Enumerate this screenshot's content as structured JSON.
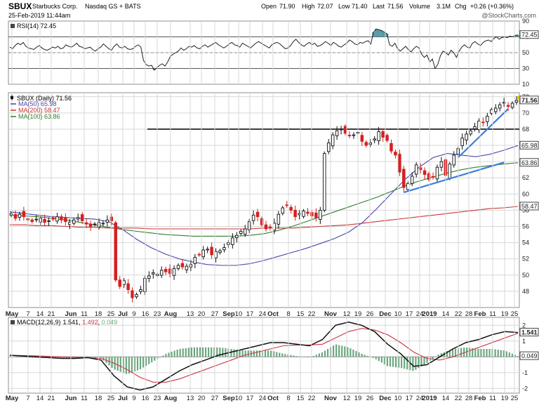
{
  "header": {
    "symbol": "SBUX",
    "company": "Starbucks Corp.",
    "exchange": "Nasdaq GS + BATS",
    "date": "25-Feb-2019 11:44am",
    "open_label": "Open",
    "open": "71.90",
    "high_label": "High",
    "high": "72.07",
    "low_label": "Low",
    "low": "71.40",
    "last_label": "Last",
    "last": "71.56",
    "volume_label": "Volume",
    "volume": "3.1M",
    "chg_label": "Chg",
    "chg": "+0.26 (+0.36%)",
    "watermark": "@StockCharts.com"
  },
  "colors": {
    "up": "#111111",
    "down": "#d42020",
    "ma50": "#4a45a8",
    "ma200": "#cc3333",
    "ma100": "#2f7d2f",
    "trend": "#3b7ddd",
    "rsi_fill": "#5b9aa8",
    "macd_hist": "#6aa77f",
    "macd_signal": "#cc3344"
  },
  "x_axis": {
    "labels": [
      "May",
      "7",
      "14",
      "21",
      "Jun",
      "11",
      "18",
      "25",
      "Jul",
      "9",
      "16",
      "23",
      "Aug",
      "13",
      "20",
      "27",
      "Sep",
      "10",
      "17",
      "24",
      "Oct",
      "8",
      "15",
      "22",
      "Nov",
      "12",
      "19",
      "26",
      "Dec",
      "10",
      "17",
      "24",
      "2019",
      "14",
      "22",
      "28",
      "Feb",
      "11",
      "19",
      "25"
    ]
  },
  "chart_data": [
    {
      "type": "line",
      "panel": "rsi",
      "title": "RSI(14) 72.45",
      "y_ticks": [
        "90",
        "70",
        "50",
        "30",
        "10"
      ],
      "ylim": [
        10,
        90
      ],
      "reference_lines": [
        70,
        50,
        30
      ],
      "last_label": "72.45",
      "series": [
        {
          "name": "RSI(14)",
          "values": [
            57,
            55,
            59,
            62,
            60,
            63,
            58,
            56,
            55,
            54,
            57,
            59,
            56,
            54,
            53,
            55,
            57,
            56,
            58,
            55,
            56,
            60,
            58,
            57,
            59,
            62,
            58,
            57,
            55,
            56,
            57,
            54,
            52,
            55,
            57,
            61,
            58,
            55,
            53,
            58,
            61,
            57,
            56,
            58,
            55,
            54,
            55,
            58,
            60,
            57,
            40,
            35,
            33,
            34,
            28,
            31,
            34,
            36,
            33,
            38,
            45,
            48,
            50,
            52,
            56,
            53,
            55,
            58,
            57,
            59,
            56,
            55,
            58,
            60,
            57,
            59,
            61,
            63,
            60,
            58,
            56,
            58,
            61,
            63,
            60,
            59,
            57,
            62,
            60,
            58,
            56,
            59,
            62,
            64,
            62,
            60,
            58,
            56,
            60,
            62,
            63,
            61,
            58,
            55,
            56,
            59,
            64,
            67,
            63,
            60,
            58,
            61,
            63,
            60,
            62,
            58,
            59,
            61,
            64,
            62,
            59,
            63,
            61,
            58,
            57,
            60,
            62,
            66,
            64,
            61,
            60,
            63,
            62,
            64,
            65,
            61,
            76,
            80,
            79,
            78,
            76,
            74,
            60,
            58,
            62,
            55,
            52,
            55,
            58,
            54,
            51,
            55,
            58,
            56,
            48,
            44,
            47,
            38,
            42,
            30,
            35,
            46,
            52,
            50,
            47,
            53,
            50,
            44,
            52,
            57,
            60,
            57,
            56,
            62,
            64,
            61,
            59,
            63,
            65,
            66,
            64,
            68,
            70,
            67,
            69,
            70,
            69,
            71,
            70,
            72,
            72.45
          ]
        }
      ]
    },
    {
      "type": "line",
      "panel": "price",
      "title": "SBUX (Daily) 71.56",
      "chart_style": "candlestick",
      "y_ticks": [
        "72",
        "70",
        "68",
        "66",
        "64",
        "62",
        "60",
        "58",
        "56",
        "54",
        "52",
        "50",
        "48"
      ],
      "ylim": [
        46,
        72.5
      ],
      "legend": [
        {
          "name": "SBUX (Daily) 71.56",
          "swatch": "candle"
        },
        {
          "name": "MA(50) 65.98",
          "color": "#4a45a8"
        },
        {
          "name": "MA(200) 58.47",
          "color": "#cc3333"
        },
        {
          "name": "MA(100) 63.86",
          "color": "#2f7d2f"
        }
      ],
      "value_tags": [
        {
          "label": "71.56",
          "value": 71.56,
          "bold": true
        },
        {
          "label": "65.98",
          "value": 65.98
        },
        {
          "label": "63.86",
          "value": 63.86
        },
        {
          "label": "58.47",
          "value": 58.47
        }
      ],
      "horizontal_line": 68.0,
      "trendlines": [
        {
          "from": [
            94,
            60.2
          ],
          "to": [
            118,
            63.9
          ]
        },
        {
          "from": [
            107,
            64.5
          ],
          "to": [
            119,
            70.5
          ]
        }
      ],
      "series": [
        {
          "name": "Close",
          "values": [
            57.6,
            57.0,
            57.5,
            57.2,
            56.8,
            56.6,
            56.9,
            57.0,
            56.5,
            56.7,
            56.9,
            57.2,
            56.8,
            56.6,
            56.5,
            56.8,
            57.1,
            56.7,
            56.3,
            56.0,
            56.3,
            56.5,
            56.4,
            56.8,
            56.7,
            49.4,
            48.6,
            49.3,
            48.2,
            47.2,
            47.6,
            48.2,
            49.6,
            49.9,
            50.3,
            50.1,
            50.6,
            50.4,
            50.2,
            50.8,
            51.2,
            51.0,
            51.1,
            51.3,
            52.2,
            52.5,
            53.1,
            53.2,
            52.5,
            52.9,
            53.0,
            53.4,
            54.0,
            54.6,
            54.9,
            55.4,
            55.7,
            56.6,
            57.4,
            57.2,
            56.2,
            55.7,
            55.9,
            56.4,
            57.5,
            58.3,
            58.6,
            58.0,
            57.2,
            57.6,
            57.9,
            57.6,
            57.3,
            57.1,
            58.0,
            65.0,
            66.3,
            67.3,
            67.8,
            68.0,
            67.5,
            67.2,
            67.3,
            67.6,
            66.5,
            66.0,
            66.3,
            66.8,
            67.7,
            67.0,
            66.6,
            65.3,
            64.8,
            62.7,
            60.8,
            61.3,
            62.2,
            63.6,
            63.0,
            62.4,
            61.8,
            62.1,
            63.3,
            64.0,
            62.3,
            63.7,
            64.8,
            65.6,
            66.9,
            67.4,
            67.8,
            68.3,
            69.0,
            68.8,
            69.6,
            70.4,
            70.6,
            71.0,
            71.3,
            70.8,
            71.2,
            71.56
          ]
        },
        {
          "name": "MA(50) 65.98",
          "values": [
            57.8,
            57.6,
            57.4,
            57.2,
            57.1,
            57.0,
            56.9,
            56.6,
            55.6,
            54.4,
            53.4,
            52.6,
            52.0,
            51.6,
            51.3,
            51.2,
            51.2,
            51.4,
            51.8,
            52.3,
            52.8,
            53.3,
            53.9,
            54.5,
            55.3,
            56.5,
            58.2,
            60.0,
            61.8,
            63.3,
            64.5,
            65.0,
            64.8,
            64.6,
            64.9,
            65.4,
            65.98
          ]
        },
        {
          "name": "MA(200) 58.47",
          "values": [
            56.2,
            56.2,
            56.1,
            56.1,
            56.0,
            55.9,
            55.9,
            55.8,
            55.8,
            55.8,
            55.7,
            55.7,
            55.7,
            55.7,
            55.7,
            55.7,
            55.7,
            55.7,
            55.8,
            55.8,
            55.8,
            55.9,
            56.0,
            56.1,
            56.2,
            56.4,
            56.6,
            56.8,
            57.0,
            57.2,
            57.4,
            57.6,
            57.8,
            58.0,
            58.2,
            58.3,
            58.47
          ]
        },
        {
          "name": "MA(100) 63.86",
          "values": [
            57.4,
            57.3,
            57.2,
            57.0,
            56.8,
            56.5,
            56.2,
            55.9,
            55.6,
            55.4,
            55.2,
            55.0,
            54.9,
            54.8,
            54.8,
            54.8,
            54.8,
            54.9,
            55.1,
            55.5,
            56.0,
            56.6,
            57.2,
            57.8,
            58.4,
            59.0,
            59.6,
            60.3,
            61.0,
            61.6,
            62.1,
            62.6,
            63.0,
            63.3,
            63.5,
            63.7,
            63.86
          ]
        }
      ]
    },
    {
      "type": "line",
      "panel": "macd",
      "title": "MACD(12,26,9) 1.541, 1.492, 0.049",
      "legend": [
        {
          "name": "MACD(12,26,9)",
          "color": "#111111"
        },
        {
          "name": "1.541",
          "color": "#111111"
        },
        {
          "name": "1.492",
          "color": "#cc3344"
        },
        {
          "name": "0.049",
          "color": "#6aa77f"
        }
      ],
      "y_ticks": [
        "2",
        "1",
        "0",
        "-1",
        "-2"
      ],
      "ylim": [
        -2.3,
        2.5
      ],
      "value_tags": [
        {
          "label": "1.541",
          "value": 1.541,
          "bold": true
        },
        {
          "label": "0.049",
          "value": 0.049
        }
      ],
      "series": [
        {
          "name": "MACD",
          "values": [
            0.1,
            0.05,
            0.0,
            -0.05,
            -0.1,
            -0.1,
            -0.05,
            -0.2,
            -1.2,
            -1.9,
            -2.1,
            -1.9,
            -1.4,
            -0.9,
            -0.5,
            -0.2,
            0.1,
            0.3,
            0.5,
            0.7,
            0.9,
            0.9,
            0.8,
            0.7,
            1.1,
            2.0,
            2.2,
            2.0,
            1.6,
            0.8,
            0.2,
            -0.6,
            -0.5,
            0.0,
            0.5,
            0.9,
            1.1,
            1.4,
            1.6,
            1.541
          ]
        },
        {
          "name": "Signal",
          "values": [
            0.1,
            0.08,
            0.06,
            0.03,
            0.0,
            -0.03,
            -0.05,
            -0.1,
            -0.4,
            -0.8,
            -1.3,
            -1.6,
            -1.6,
            -1.4,
            -1.1,
            -0.8,
            -0.5,
            -0.2,
            0.1,
            0.3,
            0.5,
            0.7,
            0.75,
            0.75,
            0.8,
            1.2,
            1.6,
            1.8,
            1.7,
            1.4,
            0.9,
            0.3,
            -0.1,
            -0.2,
            0.0,
            0.3,
            0.6,
            0.9,
            1.2,
            1.492
          ]
        },
        {
          "name": "Histogram",
          "values": [
            0.0,
            -0.03,
            -0.06,
            -0.08,
            -0.1,
            -0.07,
            0.0,
            -0.1,
            -0.8,
            -1.1,
            -0.8,
            -0.3,
            0.2,
            0.5,
            0.6,
            0.6,
            0.6,
            0.5,
            0.4,
            0.4,
            0.4,
            0.2,
            0.05,
            -0.05,
            0.3,
            0.8,
            0.6,
            0.2,
            -0.1,
            -0.6,
            -0.7,
            -0.9,
            -0.4,
            0.2,
            0.5,
            0.6,
            0.5,
            0.5,
            0.4,
            0.049
          ]
        }
      ]
    }
  ]
}
